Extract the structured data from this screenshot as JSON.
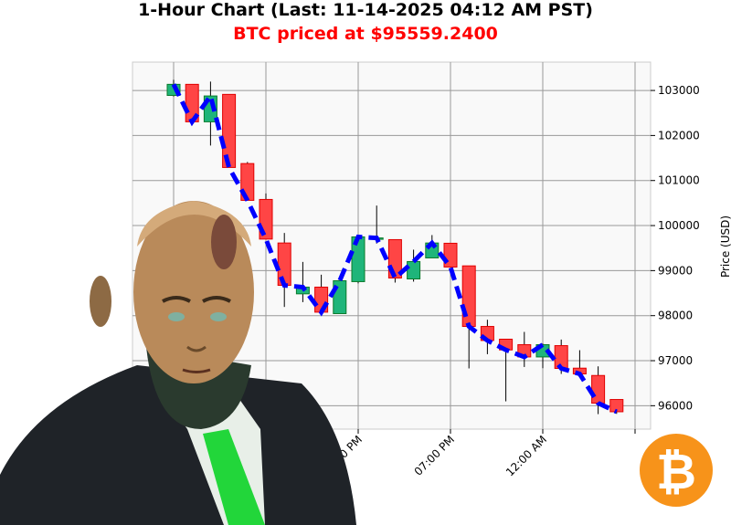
{
  "title": "1-Hour Chart (Last: 11-14-2025 04:12 AM PST)",
  "subtitle": "BTC priced at $95559.2400",
  "colors": {
    "up": "#1fb57a",
    "down": "#ff4545",
    "line": "#0000ff",
    "grid": "#999999",
    "plot_bg": "#f9f9f9",
    "bitcoin": "#f7931a"
  },
  "icons": {
    "bitcoin_logo": "bitcoin-logo",
    "mascot": "suited-android-portrait"
  },
  "chart_data": {
    "type": "candlestick",
    "title": "1-Hour Chart (Last: 11-14-2025 04:12 AM PST)",
    "ylabel": "Price (USD)",
    "xlabel": "",
    "ylim": [
      95480,
      103630
    ],
    "yticks": [
      96000,
      97000,
      98000,
      99000,
      100000,
      101000,
      102000,
      103000
    ],
    "xticks": [
      {
        "hour": 10,
        "label": "02:00 PM"
      },
      {
        "hour": 15,
        "label": "07:00 PM"
      },
      {
        "hour": 20,
        "label": "12:00 AM"
      }
    ],
    "grid": true,
    "overlay_line": "dashed blue line through closes",
    "candles": [
      {
        "time": "04:00 AM",
        "o": 102890,
        "h": 103237,
        "l": 102864,
        "c": 103136
      },
      {
        "time": "05:00 AM",
        "o": 103136,
        "h": 103136,
        "l": 102223,
        "c": 102304
      },
      {
        "time": "06:00 AM",
        "o": 102304,
        "h": 103197,
        "l": 101777,
        "c": 102878
      },
      {
        "time": "07:00 AM",
        "o": 102913,
        "h": 102913,
        "l": 101290,
        "c": 101290
      },
      {
        "time": "08:00 AM",
        "o": 101377,
        "h": 101412,
        "l": 100560,
        "c": 100560
      },
      {
        "time": "09:00 AM",
        "o": 100580,
        "h": 100714,
        "l": 99700,
        "c": 99700
      },
      {
        "time": "10:00 AM",
        "o": 99613,
        "h": 99836,
        "l": 98193,
        "c": 98673
      },
      {
        "time": "11:00 AM",
        "o": 98484,
        "h": 99193,
        "l": 98300,
        "c": 98633
      },
      {
        "time": "12:00 PM",
        "o": 98633,
        "h": 98909,
        "l": 98010,
        "c": 98077
      },
      {
        "time": "01:00 PM",
        "o": 98045,
        "h": 98775,
        "l": 98045,
        "c": 98775
      },
      {
        "time": "02:00 PM",
        "o": 98755,
        "h": 99749,
        "l": 98715,
        "c": 99749
      },
      {
        "time": "03:00 PM",
        "o": 99715,
        "h": 100444,
        "l": 99600,
        "c": 99725
      },
      {
        "time": "04:00 PM",
        "o": 99688,
        "h": 99688,
        "l": 98734,
        "c": 98836
      },
      {
        "time": "05:00 PM",
        "o": 98815,
        "h": 99465,
        "l": 98755,
        "c": 99201
      },
      {
        "time": "06:00 PM",
        "o": 99282,
        "h": 99789,
        "l": 99282,
        "c": 99613
      },
      {
        "time": "07:00 PM",
        "o": 99607,
        "h": 99607,
        "l": 99079,
        "c": 99079
      },
      {
        "time": "08:00 PM",
        "o": 99105,
        "h": 99105,
        "l": 96828,
        "c": 97760
      },
      {
        "time": "09:00 PM",
        "o": 97760,
        "h": 97909,
        "l": 97144,
        "c": 97448
      },
      {
        "time": "10:00 PM",
        "o": 97477,
        "h": 97477,
        "l": 96097,
        "c": 97239
      },
      {
        "time": "11:00 PM",
        "o": 97355,
        "h": 97639,
        "l": 96860,
        "c": 97083
      },
      {
        "time": "12:00 AM",
        "o": 97083,
        "h": 97380,
        "l": 96834,
        "c": 97355
      },
      {
        "time": "01:00 AM",
        "o": 97334,
        "h": 97469,
        "l": 96706,
        "c": 96828
      },
      {
        "time": "02:00 AM",
        "o": 96834,
        "h": 97233,
        "l": 96706,
        "c": 96706
      },
      {
        "time": "03:00 AM",
        "o": 96671,
        "h": 96874,
        "l": 95813,
        "c": 96057
      },
      {
        "time": "04:00 AM",
        "o": 96138,
        "h": 96138,
        "l": 95819,
        "c": 95866
      }
    ]
  }
}
